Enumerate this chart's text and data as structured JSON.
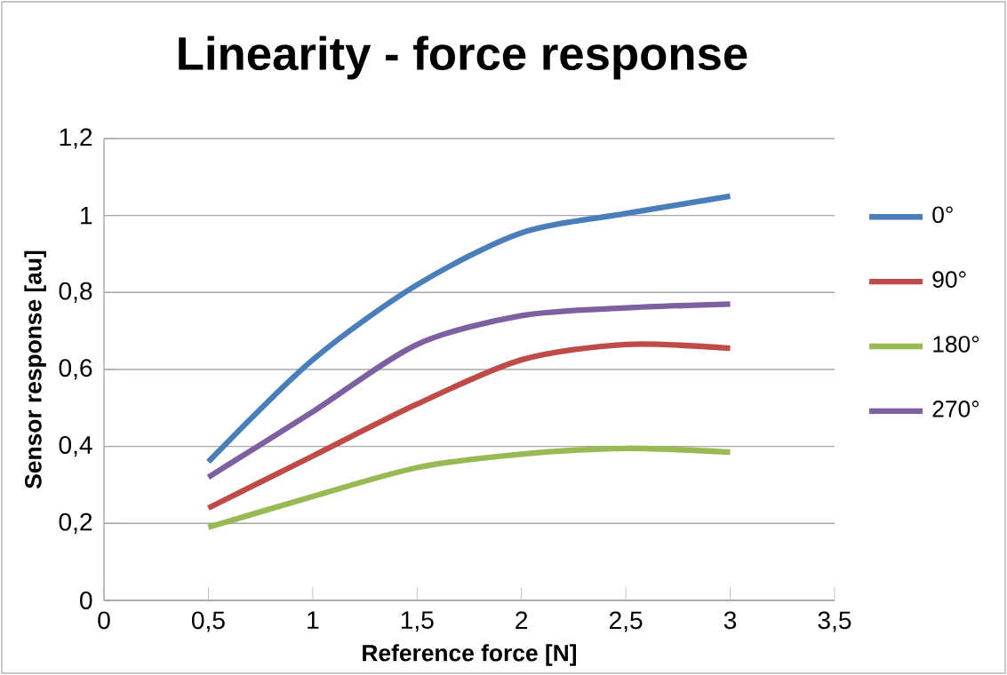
{
  "chart_data": {
    "type": "line",
    "title": "Linearity - force response",
    "xlabel": "Reference force [N]",
    "ylabel": "Sensor response [au]",
    "x": [
      0.5,
      1,
      1.5,
      2,
      2.5,
      3
    ],
    "series": [
      {
        "name": "0°",
        "color": "#4a7ebb",
        "values": [
          0.36,
          0.625,
          0.82,
          0.955,
          1.005,
          1.05
        ]
      },
      {
        "name": "90°",
        "color": "#be4b48",
        "values": [
          0.24,
          0.375,
          0.51,
          0.625,
          0.665,
          0.655
        ]
      },
      {
        "name": "180°",
        "color": "#98b954",
        "values": [
          0.19,
          0.27,
          0.345,
          0.38,
          0.395,
          0.385
        ]
      },
      {
        "name": "270°",
        "color": "#7d60a0",
        "values": [
          0.32,
          0.49,
          0.665,
          0.74,
          0.76,
          0.77
        ]
      }
    ],
    "xlim": [
      0,
      3.5
    ],
    "ylim": [
      0,
      1.2
    ],
    "xticks": [
      0,
      {
        "value": 0.5,
        "label": "0,5"
      },
      1,
      {
        "value": 1.5,
        "label": "1,5"
      },
      2,
      {
        "value": 2.5,
        "label": "2,5"
      },
      3,
      {
        "value": 3.5,
        "label": "3,5"
      }
    ],
    "yticks": [
      0,
      {
        "value": 0.2,
        "label": "0,2"
      },
      {
        "value": 0.4,
        "label": "0,4"
      },
      {
        "value": 0.6,
        "label": "0,6"
      },
      {
        "value": 0.8,
        "label": "0,8"
      },
      1,
      {
        "value": 1.2,
        "label": "1,2"
      }
    ],
    "grid": "y",
    "legend": "right",
    "marker": "none",
    "line_style": "solid"
  }
}
